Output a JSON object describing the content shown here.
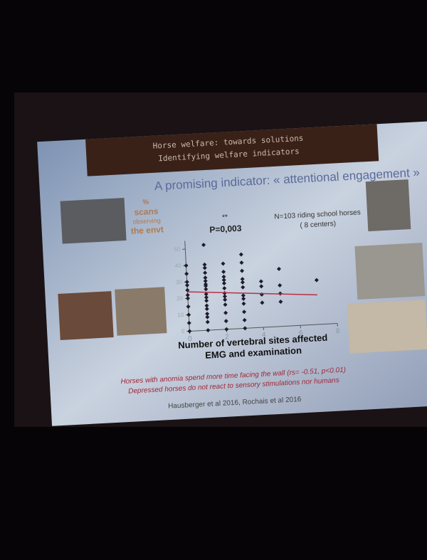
{
  "slide": {
    "header": [
      "Horse welfare: towards solutions",
      "Identifying welfare indicators"
    ],
    "heading": "A promising indicator: « attentional engagement »",
    "y_label": [
      "%",
      "scans",
      "observing",
      "the envt"
    ],
    "significance": "**",
    "p_value": "P=0,003",
    "sample": [
      "N=103 riding school horses",
      "( 8 centers)"
    ],
    "findings": [
      "Horses with anomia spend more time facing the wall (rs= -0.51, p<0.01)",
      "Depressed horses do not react to sensory stimulations nor humans"
    ],
    "reference": "Hausberger et al 2016, Rochais et al 2016"
  },
  "chart_data": {
    "type": "scatter",
    "xlabel": [
      "Number of vertebral sites affected",
      "EMG and examination"
    ],
    "x": [
      0,
      0,
      0,
      0,
      0,
      0,
      0,
      0,
      0,
      0,
      0,
      1,
      1,
      1,
      1,
      1,
      1,
      1,
      1,
      1,
      1,
      1,
      1,
      1,
      1,
      1,
      1,
      1,
      1,
      2,
      2,
      2,
      2,
      2,
      2,
      2,
      2,
      2,
      2,
      2,
      2,
      2,
      3,
      3,
      3,
      3,
      3,
      3,
      3,
      3,
      3,
      3,
      3,
      3,
      4,
      4,
      4,
      4,
      5,
      5,
      5,
      5,
      7
    ],
    "values": [
      0,
      5,
      10,
      15,
      20,
      22,
      25,
      28,
      30,
      35,
      40,
      0,
      5,
      8,
      10,
      13,
      15,
      18,
      20,
      22,
      25,
      27,
      28,
      30,
      32,
      35,
      38,
      40,
      52,
      0,
      5,
      10,
      15,
      18,
      20,
      22,
      25,
      28,
      30,
      32,
      35,
      40,
      0,
      5,
      10,
      15,
      18,
      20,
      25,
      28,
      30,
      35,
      40,
      45,
      15,
      20,
      25,
      28,
      15,
      20,
      25,
      35,
      27
    ],
    "color": "#1c1c2c",
    "trend": {
      "x": [
        0,
        7
      ],
      "values": [
        24,
        18
      ],
      "color": "#b8304a"
    },
    "xlim": [
      0,
      8
    ],
    "ylim": [
      0,
      55
    ],
    "xticks": [
      0,
      2,
      4,
      6,
      8
    ],
    "yticks": [
      0,
      10,
      20,
      30,
      40,
      50
    ]
  }
}
